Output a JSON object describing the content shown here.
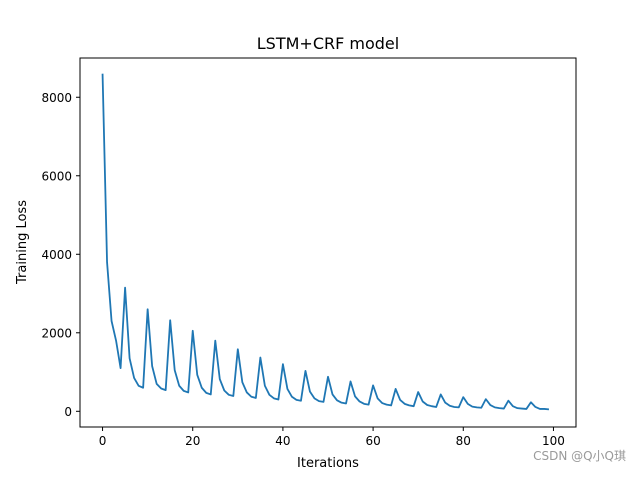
{
  "watermark": "CSDN @Q小Q琪",
  "chart_data": {
    "type": "line",
    "title": "LSTM+CRF model",
    "xlabel": "Iterations",
    "ylabel": "Training Loss",
    "xlim": [
      -5,
      105
    ],
    "ylim": [
      -400,
      9000
    ],
    "xticks": [
      0,
      20,
      40,
      60,
      80,
      100
    ],
    "yticks": [
      0,
      2000,
      4000,
      6000,
      8000
    ],
    "grid": false,
    "line_color": "#1f77b4",
    "series": [
      {
        "x": [
          0,
          1,
          2,
          3,
          4,
          5,
          6,
          7,
          8,
          9,
          10,
          11,
          12,
          13,
          14,
          15,
          16,
          17,
          18,
          19,
          20,
          21,
          22,
          23,
          24,
          25,
          26,
          27,
          28,
          29,
          30,
          31,
          32,
          33,
          34,
          35,
          36,
          37,
          38,
          39,
          40,
          41,
          42,
          43,
          44,
          45,
          46,
          47,
          48,
          49,
          50,
          51,
          52,
          53,
          54,
          55,
          56,
          57,
          58,
          59,
          60,
          61,
          62,
          63,
          64,
          65,
          66,
          67,
          68,
          69,
          70,
          71,
          72,
          73,
          74,
          75,
          76,
          77,
          78,
          79,
          80,
          81,
          82,
          83,
          84,
          85,
          86,
          87,
          88,
          89,
          90,
          91,
          92,
          93,
          94,
          95,
          96,
          97,
          98,
          99
        ],
        "values": [
          8600,
          3800,
          2300,
          1800,
          1100,
          3150,
          1350,
          850,
          650,
          600,
          2600,
          1150,
          700,
          580,
          540,
          2320,
          1050,
          650,
          520,
          480,
          2050,
          930,
          600,
          470,
          430,
          1800,
          820,
          530,
          420,
          390,
          1580,
          740,
          480,
          370,
          340,
          1370,
          650,
          420,
          330,
          300,
          1200,
          570,
          370,
          290,
          270,
          1030,
          500,
          330,
          260,
          240,
          880,
          430,
          280,
          220,
          200,
          760,
          380,
          250,
          190,
          170,
          660,
          330,
          210,
          170,
          150,
          570,
          290,
          190,
          150,
          130,
          490,
          250,
          160,
          130,
          110,
          430,
          220,
          140,
          110,
          100,
          360,
          190,
          120,
          100,
          90,
          310,
          160,
          100,
          80,
          70,
          270,
          130,
          80,
          70,
          60,
          230,
          110,
          60,
          60,
          50
        ]
      }
    ]
  }
}
